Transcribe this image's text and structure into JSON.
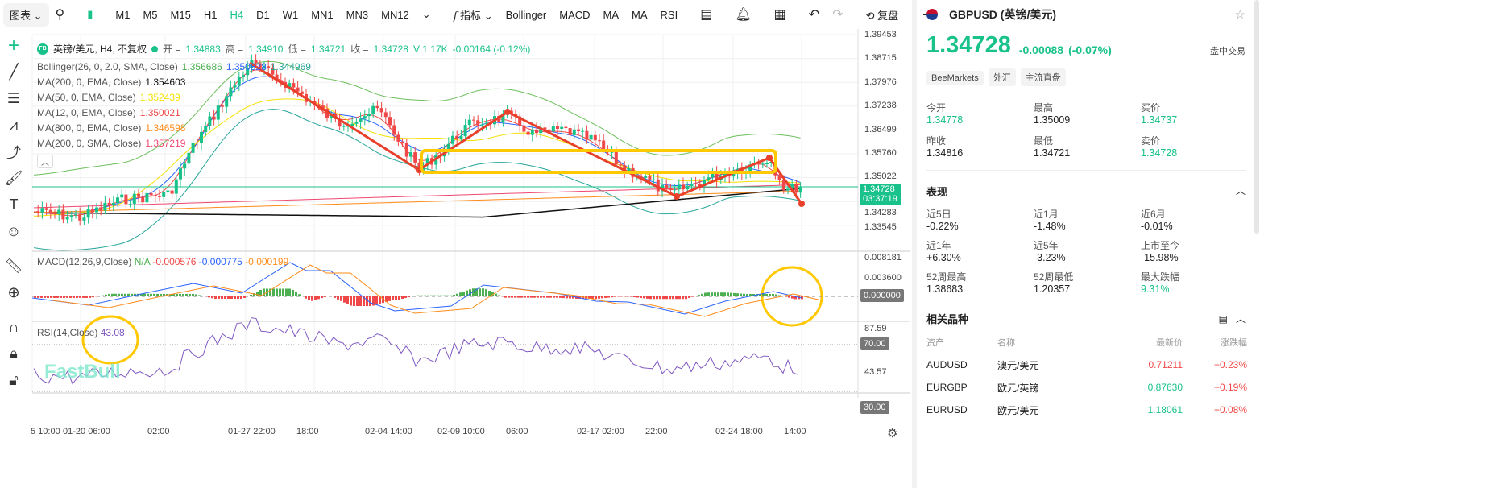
{
  "toolbar": {
    "chart_menu": "图表",
    "timeframes": [
      "M1",
      "M5",
      "M15",
      "H1",
      "H4",
      "D1",
      "W1",
      "MN1",
      "MN3",
      "MN12"
    ],
    "active_timeframe": "H4",
    "indicators_label": "指标",
    "indicators": [
      "Bollinger",
      "MACD",
      "MA",
      "MA",
      "RSI"
    ],
    "replay_label": "复盘"
  },
  "legend": {
    "badge": "FB",
    "symbol": "英镑/美元, H4, 不复权",
    "open_label": "开 =",
    "open": "1.34883",
    "high_label": "高 =",
    "high": "1.34910",
    "low_label": "低 =",
    "low": "1.34721",
    "close_label": "收 =",
    "close": "1.34728",
    "volume": "V 1.17K",
    "change": "-0.00164 (-0.12%)",
    "indicators": [
      {
        "name": "Bollinger(26, 0, 2.0, SMA, Close)",
        "values": [
          {
            "v": "1.356686",
            "c": "#4caf50"
          },
          {
            "v": "1.350828",
            "c": "#2962ff"
          },
          {
            "v": "1.344969",
            "c": "#26a69a"
          }
        ]
      },
      {
        "name": "MA(200, 0, EMA, Close)",
        "values": [
          {
            "v": "1.354603",
            "c": "#111111"
          }
        ]
      },
      {
        "name": "MA(50, 0, EMA, Close)",
        "values": [
          {
            "v": "1.352439",
            "c": "#f5e000"
          }
        ]
      },
      {
        "name": "MA(12, 0, EMA, Close)",
        "values": [
          {
            "v": "1.350021",
            "c": "#f04848"
          }
        ]
      },
      {
        "name": "MA(800, 0, EMA, Close)",
        "values": [
          {
            "v": "1.346598",
            "c": "#ff8c1a"
          }
        ]
      },
      {
        "name": "MA(200, 0, SMA, Close)",
        "values": [
          {
            "v": "1.357219",
            "c": "#f04870"
          }
        ]
      }
    ]
  },
  "price_axis": [
    "1.39453",
    "1.38715",
    "1.37976",
    "1.37238",
    "1.36499",
    "1.35760",
    "1.35022",
    "1.34283",
    "1.33545"
  ],
  "current_price_tag": {
    "price": "1.34728",
    "countdown": "03:37:19"
  },
  "macd": {
    "label": "MACD(12,26,9,Close)",
    "na": "N/A",
    "v1": "-0.000576",
    "v2": "-0.000775",
    "v3": "-0.000199",
    "axis": [
      "0.008181",
      "0.003600"
    ],
    "zero_tag": "0.000000"
  },
  "rsi": {
    "label": "RSI(14,Close)",
    "value": "43.08",
    "axis": [
      "87.59",
      "43.57"
    ],
    "upper_tag": "70.00",
    "lower_tag": "30.00"
  },
  "time_axis": [
    "5 10:00",
    "01-20 06:00",
    "02:00",
    "01-27 22:00",
    "18:00",
    "02-04 14:00",
    "02-09 10:00",
    "06:00",
    "02-17 02:00",
    "22:00",
    "02-24 18:00",
    "14:00"
  ],
  "watermark": "FastBull",
  "panel": {
    "title": "GBPUSD (英镑/美元)",
    "price": "1.34728",
    "change": "-0.00088",
    "change_pct": "(-0.07%)",
    "session": "盘中交易",
    "badges": [
      "BeeMarkets",
      "外汇",
      "主流直盘"
    ],
    "quote": [
      {
        "label": "今开",
        "value": "1.34778",
        "color": "green"
      },
      {
        "label": "最高",
        "value": "1.35009",
        "color": ""
      },
      {
        "label": "买价",
        "value": "1.34737",
        "color": "green"
      },
      {
        "label": "昨收",
        "value": "1.34816",
        "color": ""
      },
      {
        "label": "最低",
        "value": "1.34721",
        "color": ""
      },
      {
        "label": "卖价",
        "value": "1.34728",
        "color": "green"
      }
    ],
    "performance_title": "表现",
    "performance": [
      {
        "label": "近5日",
        "value": "-0.22%",
        "color": ""
      },
      {
        "label": "近1月",
        "value": "-1.48%",
        "color": ""
      },
      {
        "label": "近6月",
        "value": "-0.01%",
        "color": ""
      },
      {
        "label": "近1年",
        "value": "+6.30%",
        "color": ""
      },
      {
        "label": "近5年",
        "value": "-3.23%",
        "color": ""
      },
      {
        "label": "上市至今",
        "value": "-15.98%",
        "color": ""
      },
      {
        "label": "52周最高",
        "value": "1.38683",
        "color": ""
      },
      {
        "label": "52周最低",
        "value": "1.20357",
        "color": ""
      },
      {
        "label": "最大跌幅",
        "value": "9.31%",
        "color": "green"
      }
    ],
    "related_title": "相关品种",
    "related_headers": [
      "资产",
      "名称",
      "最新价",
      "涨跌幅"
    ],
    "related": [
      {
        "asset": "AUDUSD",
        "name": "澳元/美元",
        "price": "0.71211",
        "price_color": "red",
        "change": "+0.23%"
      },
      {
        "asset": "EURGBP",
        "name": "欧元/英镑",
        "price": "0.87630",
        "price_color": "green",
        "change": "+0.19%"
      },
      {
        "asset": "EURUSD",
        "name": "欧元/美元",
        "price": "1.18061",
        "price_color": "green",
        "change": "+0.08%"
      }
    ]
  },
  "colors": {
    "up": "#19c28a",
    "down": "#f04848",
    "annotation_red": "#e8402a",
    "annotation_yellow": "#ffc800"
  }
}
